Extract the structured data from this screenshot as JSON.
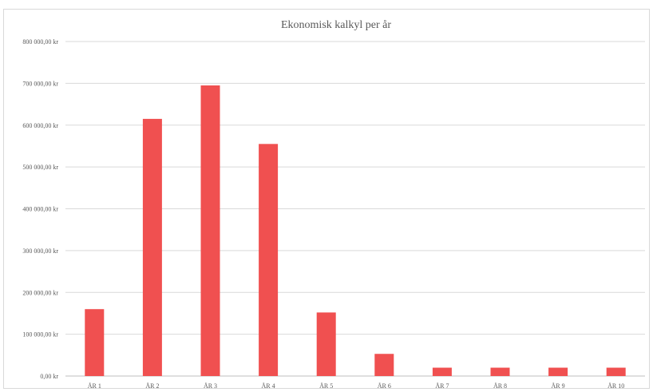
{
  "chart_data": {
    "type": "bar",
    "title": "Ekonomisk kalkyl per år",
    "xlabel": "",
    "ylabel": "",
    "categories": [
      "ÅR 1",
      "ÅR 2",
      "ÅR 3",
      "ÅR 4",
      "ÅR 5",
      "ÅR 6",
      "ÅR 7",
      "ÅR 8",
      "ÅR 9",
      "ÅR 10"
    ],
    "values": [
      160000,
      615000,
      695000,
      555000,
      152000,
      53000,
      20000,
      20000,
      20000,
      20000
    ],
    "ylim": [
      0,
      800000
    ],
    "yticks": [
      0,
      100000,
      200000,
      300000,
      400000,
      500000,
      600000,
      700000,
      800000
    ],
    "ytick_labels": [
      "0,00 kr",
      "100 000,00 kr",
      "200 000,00 kr",
      "300 000,00 kr",
      "400 000,00 kr",
      "500 000,00 kr",
      "600 000,00 kr",
      "700 000,00 kr",
      "800 000,00 kr"
    ],
    "grid": true,
    "legend": "none",
    "bar_color": "#f05050"
  }
}
